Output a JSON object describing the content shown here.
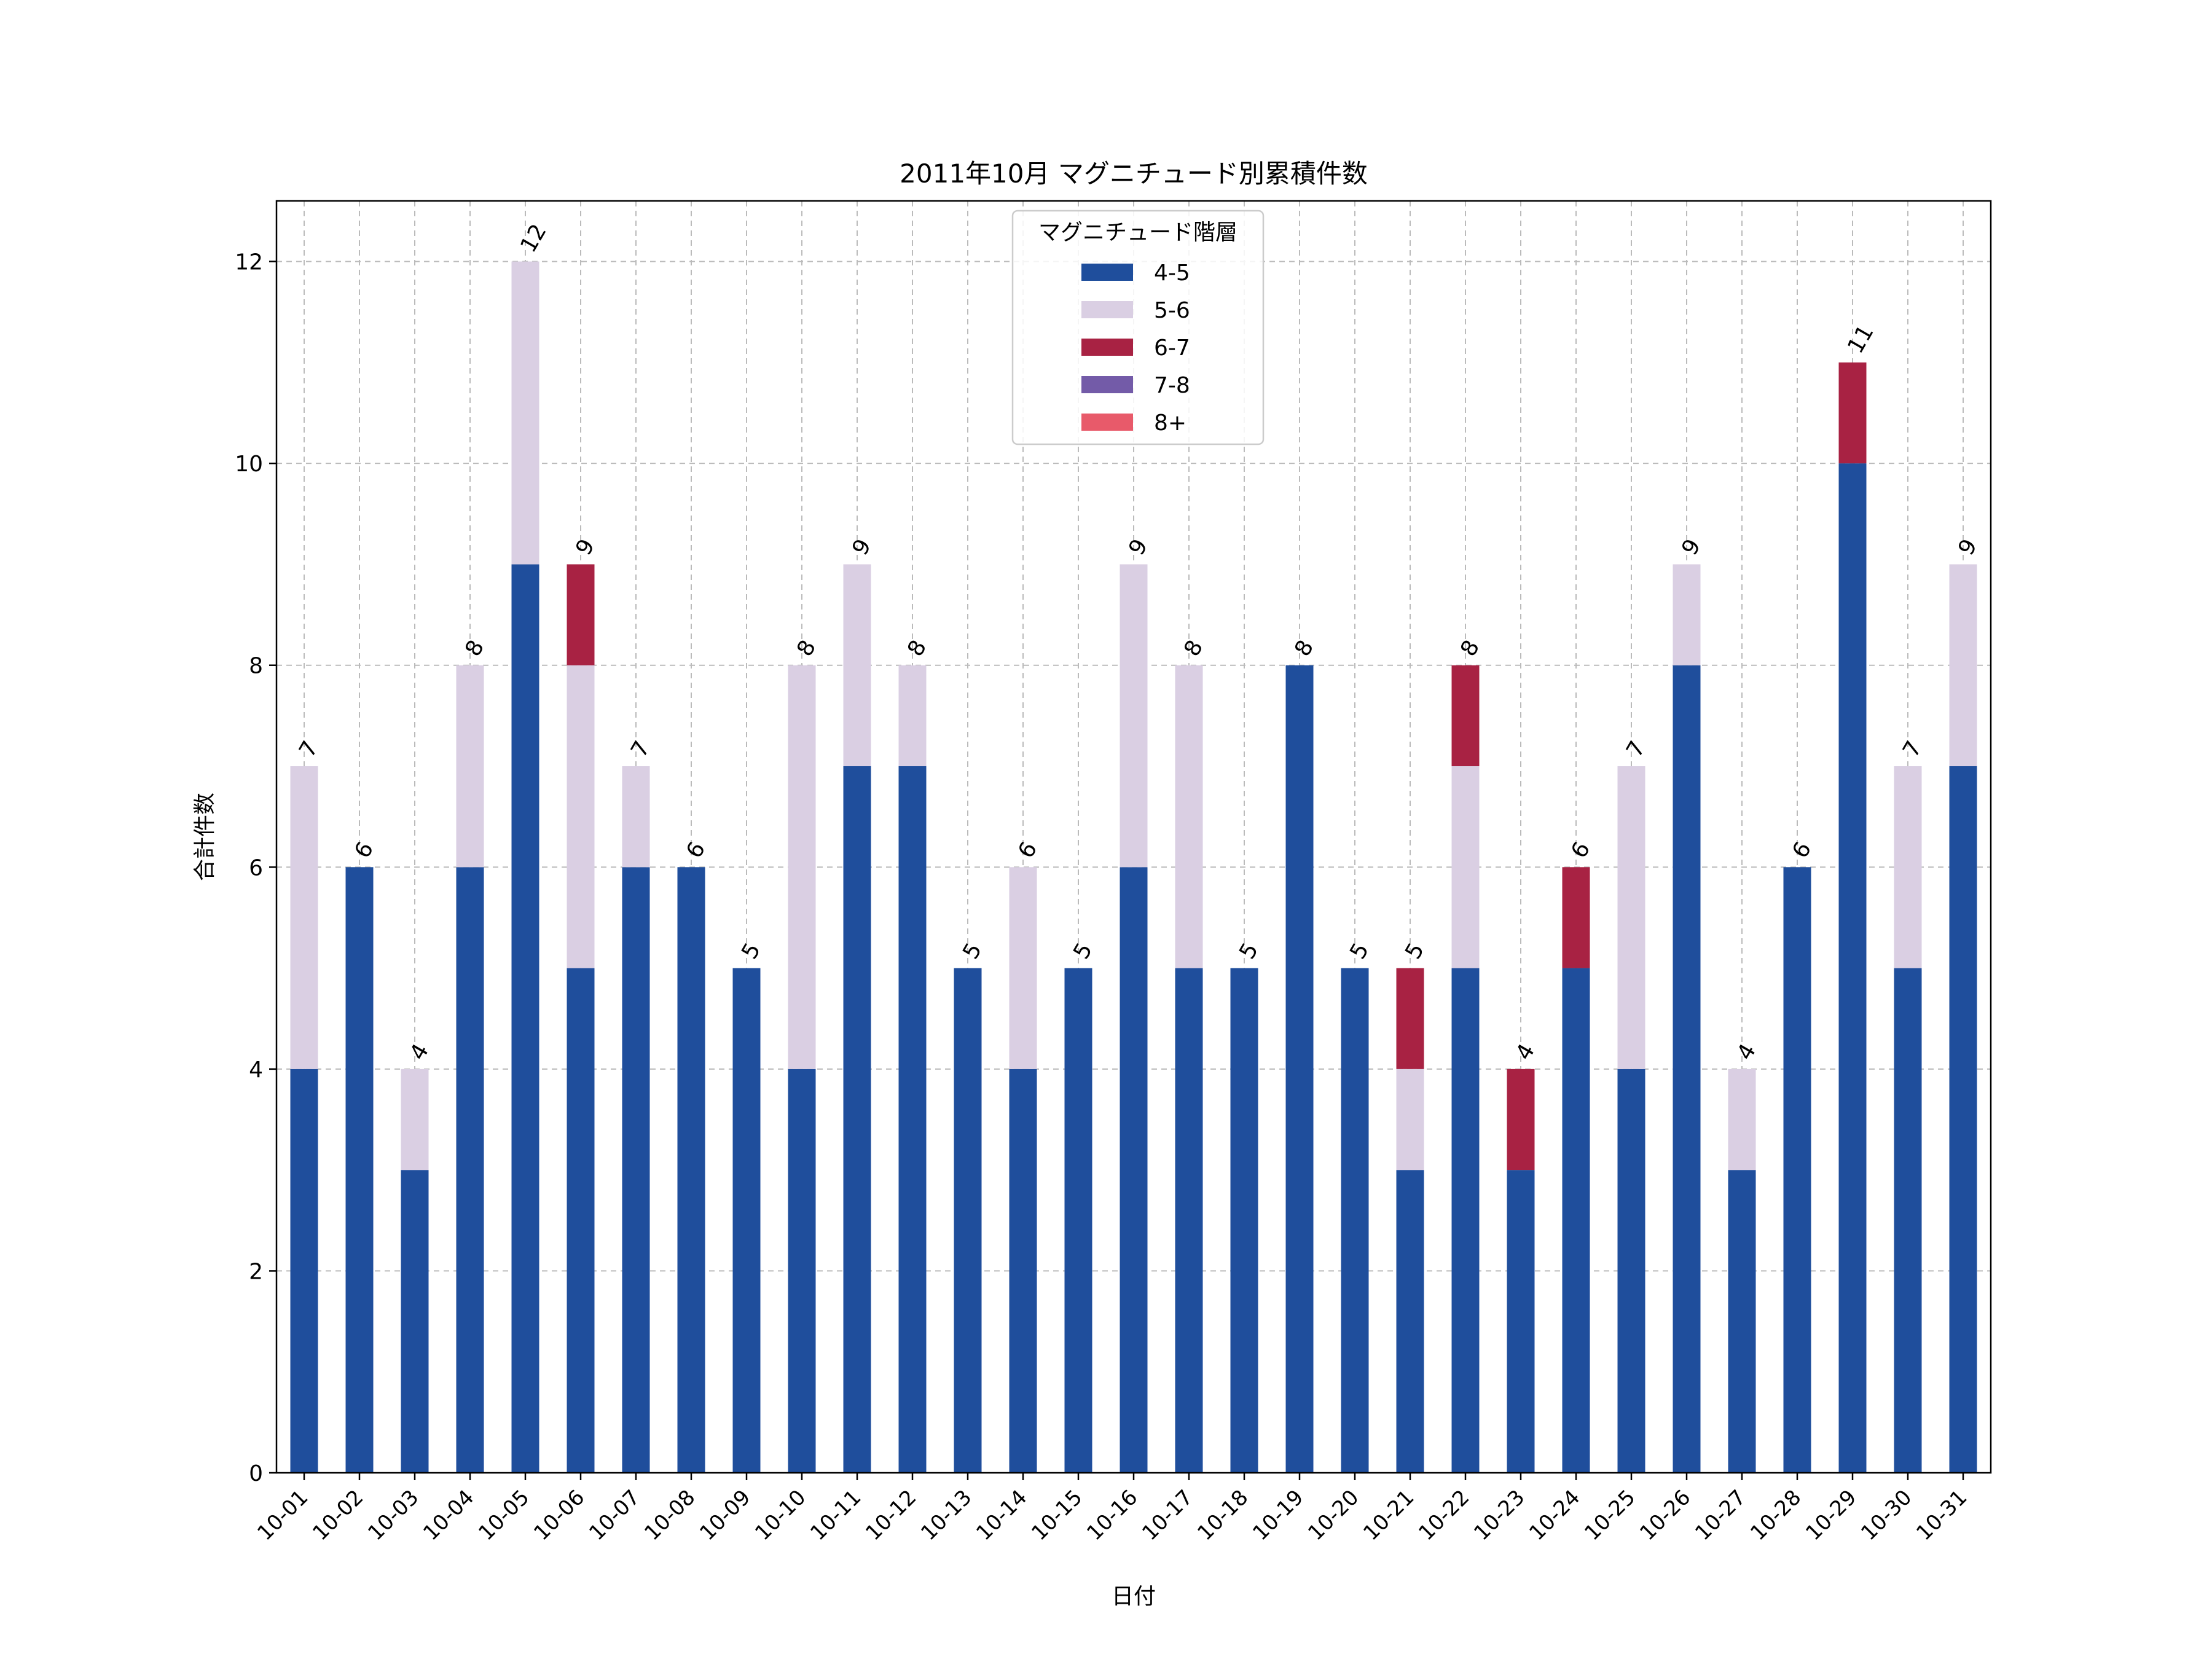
{
  "chart_data": {
    "type": "bar",
    "stacked": true,
    "title": "2011年10月 マグニチュード別累積件数",
    "xlabel": "日付",
    "ylabel": "合計件数",
    "ylim": [
      0,
      12.6
    ],
    "yticks": [
      0,
      2,
      4,
      6,
      8,
      10,
      12
    ],
    "grid": true,
    "legend": {
      "title": "マグニチュード階層",
      "placement": "upper-center"
    },
    "categories": [
      "10-01",
      "10-02",
      "10-03",
      "10-04",
      "10-05",
      "10-06",
      "10-07",
      "10-08",
      "10-09",
      "10-10",
      "10-11",
      "10-12",
      "10-13",
      "10-14",
      "10-15",
      "10-16",
      "10-17",
      "10-18",
      "10-19",
      "10-20",
      "10-21",
      "10-22",
      "10-23",
      "10-24",
      "10-25",
      "10-26",
      "10-27",
      "10-28",
      "10-29",
      "10-30",
      "10-31"
    ],
    "series": [
      {
        "name": "4-5",
        "color": "#1f4e9c",
        "values": [
          4,
          6,
          3,
          6,
          9,
          5,
          6,
          6,
          5,
          4,
          7,
          7,
          5,
          4,
          5,
          6,
          5,
          5,
          8,
          5,
          3,
          5,
          3,
          5,
          4,
          8,
          3,
          6,
          10,
          5,
          7
        ]
      },
      {
        "name": "5-6",
        "color": "#dacfe3",
        "values": [
          3,
          0,
          1,
          2,
          3,
          3,
          1,
          0,
          0,
          4,
          2,
          1,
          0,
          2,
          0,
          3,
          3,
          0,
          0,
          0,
          1,
          2,
          0,
          0,
          3,
          1,
          1,
          0,
          0,
          2,
          2
        ]
      },
      {
        "name": "6-7",
        "color": "#a82243",
        "values": [
          0,
          0,
          0,
          0,
          0,
          1,
          0,
          0,
          0,
          0,
          0,
          0,
          0,
          0,
          0,
          0,
          0,
          0,
          0,
          0,
          1,
          1,
          1,
          1,
          0,
          0,
          0,
          0,
          1,
          0,
          0
        ]
      },
      {
        "name": "7-8",
        "color": "#735ba8",
        "values": [
          0,
          0,
          0,
          0,
          0,
          0,
          0,
          0,
          0,
          0,
          0,
          0,
          0,
          0,
          0,
          0,
          0,
          0,
          0,
          0,
          0,
          0,
          0,
          0,
          0,
          0,
          0,
          0,
          0,
          0,
          0
        ]
      },
      {
        "name": "8+",
        "color": "#e85a6a",
        "values": [
          0,
          0,
          0,
          0,
          0,
          0,
          0,
          0,
          0,
          0,
          0,
          0,
          0,
          0,
          0,
          0,
          0,
          0,
          0,
          0,
          0,
          0,
          0,
          0,
          0,
          0,
          0,
          0,
          0,
          0,
          0
        ]
      }
    ],
    "totals": [
      7,
      6,
      4,
      8,
      12,
      9,
      7,
      6,
      5,
      8,
      9,
      8,
      5,
      6,
      5,
      9,
      8,
      5,
      8,
      5,
      5,
      8,
      4,
      6,
      7,
      9,
      4,
      6,
      11,
      7,
      9
    ]
  }
}
